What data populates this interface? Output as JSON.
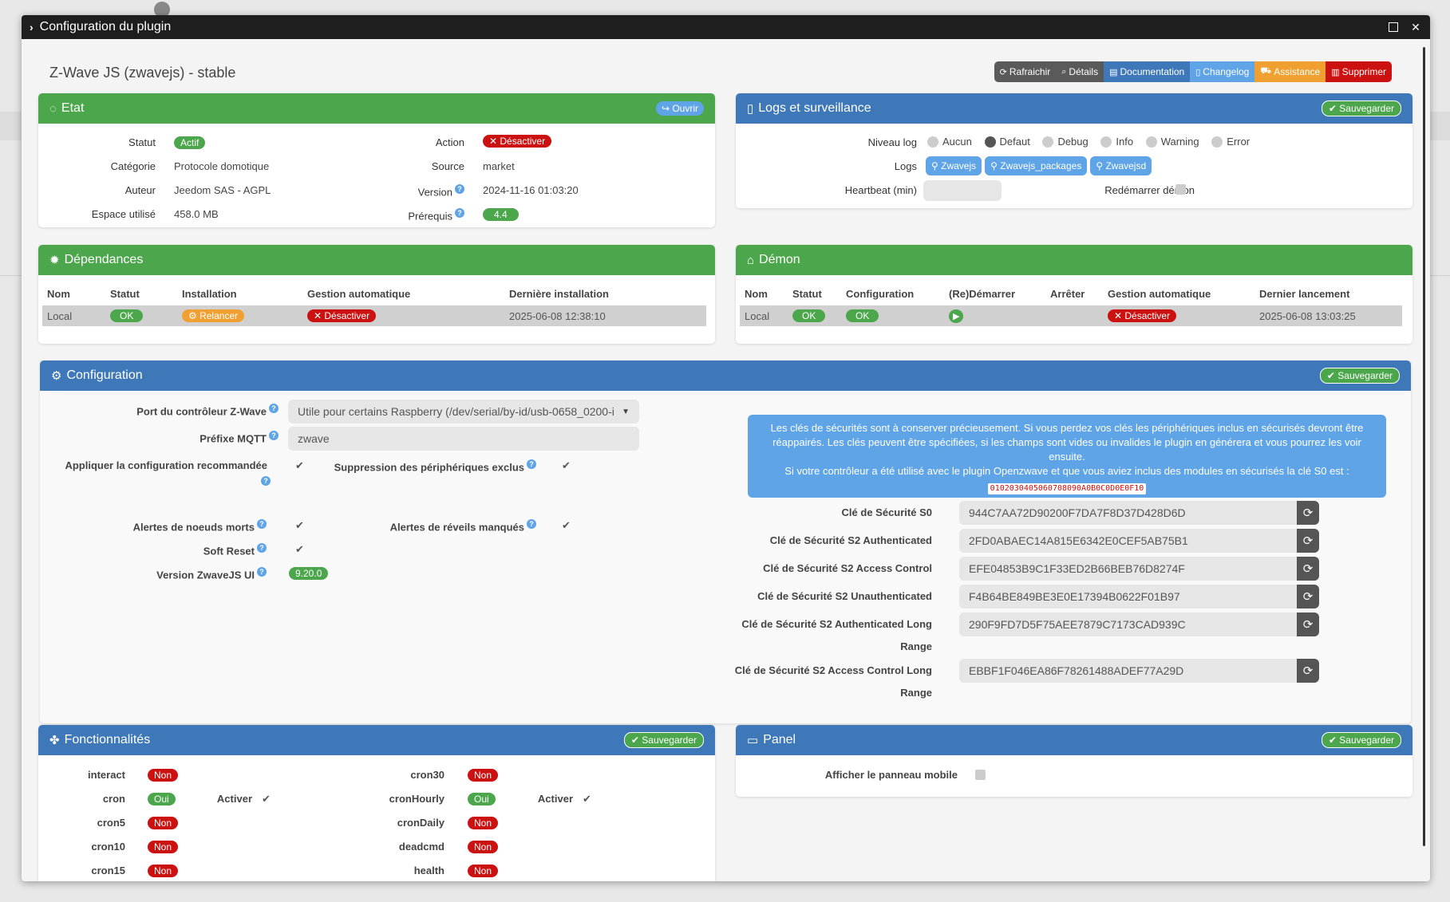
{
  "window": {
    "title": "Configuration du plugin"
  },
  "plugin": {
    "title": "Z-Wave JS (zwavejs) - stable"
  },
  "toolbar": {
    "refresh": "Rafraichir",
    "details": "Détails",
    "documentation": "Documentation",
    "changelog": "Changelog",
    "assistance": "Assistance",
    "delete": "Supprimer"
  },
  "etat": {
    "title": "Etat",
    "open": "Ouvrir",
    "statut_label": "Statut",
    "statut_value": "Actif",
    "categorie_label": "Catégorie",
    "categorie_value": "Protocole domotique",
    "auteur_label": "Auteur",
    "auteur_value": "Jeedom SAS - AGPL",
    "espace_label": "Espace utilisé",
    "espace_value": "458.0 MB",
    "action_label": "Action",
    "action_value": "Désactiver",
    "source_label": "Source",
    "source_value": "market",
    "version_label": "Version",
    "version_value": "2024-11-16 01:03:20",
    "prerequis_label": "Prérequis",
    "prerequis_value": "4.4"
  },
  "logs": {
    "title": "Logs et surveillance",
    "save": "Sauvegarder",
    "niveau_label": "Niveau log",
    "levels": [
      "Aucun",
      "Defaut",
      "Debug",
      "Info",
      "Warning",
      "Error"
    ],
    "selected_level": "Defaut",
    "logs_label": "Logs",
    "log_buttons": [
      "Zwavejs",
      "Zwavejs_packages",
      "Zwavejsd"
    ],
    "heartbeat_label": "Heartbeat (min)",
    "heartbeat_value": "",
    "restart_label": "Redémarrer démon"
  },
  "dependances": {
    "title": "Dépendances",
    "headers": [
      "Nom",
      "Statut",
      "Installation",
      "Gestion automatique",
      "Dernière installation"
    ],
    "row": {
      "nom": "Local",
      "statut": "OK",
      "installation": "Relancer",
      "gestion": "Désactiver",
      "derniere": "2025-06-08 12:38:10"
    }
  },
  "demon": {
    "title": "Démon",
    "headers": [
      "Nom",
      "Statut",
      "Configuration",
      "(Re)Démarrer",
      "Arrêter",
      "Gestion automatique",
      "Dernier lancement"
    ],
    "row": {
      "nom": "Local",
      "statut": "OK",
      "configuration": "OK",
      "gestion": "Désactiver",
      "dernier": "2025-06-08 13:03:25"
    }
  },
  "configuration": {
    "title": "Configuration",
    "save": "Sauvegarder",
    "port_label": "Port du contrôleur Z-Wave",
    "port_value": "Utile pour certains Raspberry (/dev/serial/by-id/usb-0658_0200-i",
    "mqtt_label": "Préfixe MQTT",
    "mqtt_value": "zwave",
    "reco_label": "Appliquer la configuration recommandée",
    "suppr_label": "Suppression des périphériques exclus",
    "morts_label": "Alertes de noeuds morts",
    "reveils_label": "Alertes de réveils manqués",
    "softreset_label": "Soft Reset",
    "ui_label": "Version ZwaveJS UI",
    "ui_value": "9.20.0",
    "alert_line1": "Les clés de sécurités sont à conserver précieusement. Si vous perdez vos clés les périphériques inclus en sécurisés devront être réappairés. Les clés peuvent être spécifiées, si les champs sont vides ou invalides le plugin en générera et vous pourrez les voir ensuite.",
    "alert_line2": "Si votre contrôleur a été utilisé avec le plugin Openzwave et que vous aviez inclus des modules en sécurisés la clé S0 est :",
    "alert_code": "0102030405060708090A0B0C0D0E0F10",
    "keys": [
      {
        "label": "Clé de Sécurité S0",
        "value": "944C7AA72D90200F7DA7F8D37D428D6D"
      },
      {
        "label": "Clé de Sécurité S2 Authenticated",
        "value": "2FD0ABAEC14A815E6342E0CEF5AB75B1"
      },
      {
        "label": "Clé de Sécurité S2 Access Control",
        "value": "EFE04853B9C1F33ED2B66BEB76D8274F"
      },
      {
        "label": "Clé de Sécurité S2 Unauthenticated",
        "value": "F4B64BE849BE3E0E17394B0622F01B97"
      },
      {
        "label": "Clé de Sécurité S2 Authenticated Long",
        "label2": "Range",
        "value": "290F9FD7D5F75AEE7879C7173CAD939C"
      },
      {
        "label": "Clé de Sécurité S2 Access Control Long",
        "label2": "Range",
        "value": "EBBF1F046EA86F78261488ADEF77A29D"
      }
    ]
  },
  "fonctionnalites": {
    "title": "Fonctionnalités",
    "save": "Sauvegarder",
    "activer": "Activer",
    "left": [
      {
        "name": "interact",
        "value": "Non"
      },
      {
        "name": "cron",
        "value": "Oui"
      },
      {
        "name": "cron5",
        "value": "Non"
      },
      {
        "name": "cron10",
        "value": "Non"
      },
      {
        "name": "cron15",
        "value": "Non"
      }
    ],
    "right": [
      {
        "name": "cron30",
        "value": "Non"
      },
      {
        "name": "cronHourly",
        "value": "Oui"
      },
      {
        "name": "cronDaily",
        "value": "Non"
      },
      {
        "name": "deadcmd",
        "value": "Non"
      },
      {
        "name": "health",
        "value": "Non"
      }
    ]
  },
  "panel": {
    "title": "Panel",
    "save": "Sauvegarder",
    "mobile_label": "Afficher le panneau mobile"
  }
}
